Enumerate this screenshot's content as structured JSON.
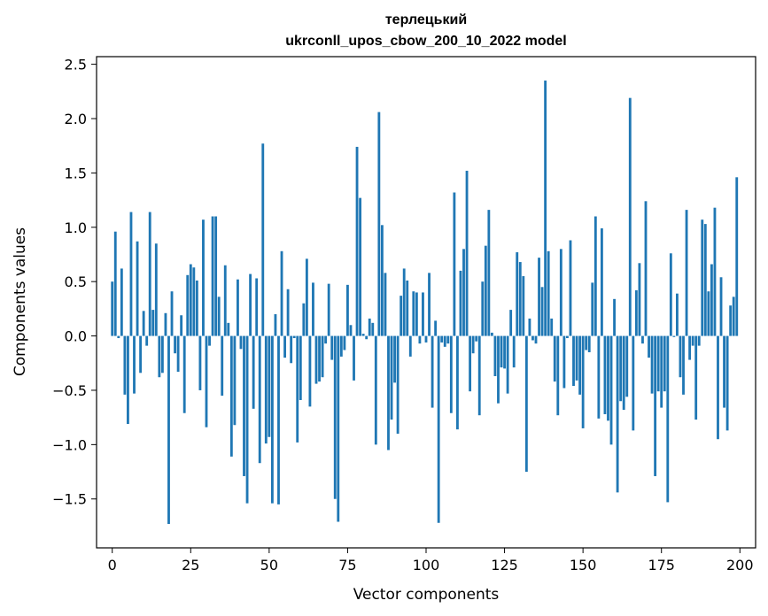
{
  "chart_data": {
    "type": "bar",
    "title_line1": "терлецький",
    "title_line2": "ukrconll_upos_cbow_200_10_2022 model",
    "xlabel": "Vector components",
    "ylabel": "Components values",
    "xlim": [
      -5,
      205
    ],
    "ylim": [
      -1.95,
      2.57
    ],
    "xticks": [
      0,
      25,
      50,
      75,
      100,
      125,
      150,
      175,
      200
    ],
    "yticks": [
      -1.5,
      -1.0,
      -0.5,
      0.0,
      0.5,
      1.0,
      1.5,
      2.0,
      2.5
    ],
    "bar_color": "#1f77b4",
    "grid": false,
    "x": [
      0,
      1,
      2,
      3,
      4,
      5,
      6,
      7,
      8,
      9,
      10,
      11,
      12,
      13,
      14,
      15,
      16,
      17,
      18,
      19,
      20,
      21,
      22,
      23,
      24,
      25,
      26,
      27,
      28,
      29,
      30,
      31,
      32,
      33,
      34,
      35,
      36,
      37,
      38,
      39,
      40,
      41,
      42,
      43,
      44,
      45,
      46,
      47,
      48,
      49,
      50,
      51,
      52,
      53,
      54,
      55,
      56,
      57,
      58,
      59,
      60,
      61,
      62,
      63,
      64,
      65,
      66,
      67,
      68,
      69,
      70,
      71,
      72,
      73,
      74,
      75,
      76,
      77,
      78,
      79,
      80,
      81,
      82,
      83,
      84,
      85,
      86,
      87,
      88,
      89,
      90,
      91,
      92,
      93,
      94,
      95,
      96,
      97,
      98,
      99,
      100,
      101,
      102,
      103,
      104,
      105,
      106,
      107,
      108,
      109,
      110,
      111,
      112,
      113,
      114,
      115,
      116,
      117,
      118,
      119,
      120,
      121,
      122,
      123,
      124,
      125,
      126,
      127,
      128,
      129,
      130,
      131,
      132,
      133,
      134,
      135,
      136,
      137,
      138,
      139,
      140,
      141,
      142,
      143,
      144,
      145,
      146,
      147,
      148,
      149,
      150,
      151,
      152,
      153,
      154,
      155,
      156,
      157,
      158,
      159,
      160,
      161,
      162,
      163,
      164,
      165,
      166,
      167,
      168,
      169,
      170,
      171,
      172,
      173,
      174,
      175,
      176,
      177,
      178,
      179,
      180,
      181,
      182,
      183,
      184,
      185,
      186,
      187,
      188,
      189,
      190,
      191,
      192,
      193,
      194,
      195,
      196,
      197,
      198,
      199
    ],
    "values": [
      0.5,
      0.96,
      -0.02,
      0.62,
      -0.54,
      -0.81,
      1.14,
      -0.53,
      0.87,
      -0.34,
      0.23,
      -0.09,
      1.14,
      0.24,
      0.85,
      -0.38,
      -0.34,
      0.21,
      -1.73,
      0.41,
      -0.16,
      -0.33,
      0.19,
      -0.71,
      0.56,
      0.66,
      0.63,
      0.51,
      -0.5,
      1.07,
      -0.84,
      -0.09,
      1.1,
      1.1,
      0.36,
      -0.55,
      0.65,
      0.12,
      -1.11,
      -0.82,
      0.52,
      -0.12,
      -1.29,
      -1.54,
      0.57,
      -0.67,
      0.53,
      -1.17,
      1.77,
      -0.99,
      -0.93,
      -1.54,
      0.2,
      -1.55,
      0.78,
      -0.2,
      0.43,
      -0.25,
      -0.02,
      -0.98,
      -0.59,
      0.3,
      0.71,
      -0.65,
      0.49,
      -0.44,
      -0.42,
      -0.38,
      -0.07,
      0.48,
      -0.22,
      -1.5,
      -1.71,
      -0.19,
      -0.13,
      0.47,
      0.1,
      -0.41,
      1.74,
      1.27,
      0.02,
      -0.03,
      0.16,
      0.12,
      -1.0,
      2.06,
      1.02,
      0.58,
      -1.05,
      -0.77,
      -0.43,
      -0.9,
      0.37,
      0.62,
      0.51,
      -0.19,
      0.41,
      0.4,
      -0.07,
      0.4,
      -0.06,
      0.58,
      -0.66,
      0.14,
      -1.72,
      -0.06,
      -0.1,
      -0.07,
      -0.71,
      1.32,
      -0.86,
      0.6,
      0.8,
      1.52,
      -0.51,
      -0.16,
      -0.05,
      -0.73,
      0.5,
      0.83,
      1.16,
      0.03,
      -0.37,
      -0.62,
      -0.29,
      -0.3,
      -0.53,
      0.24,
      -0.29,
      0.77,
      0.68,
      0.55,
      -1.25,
      0.16,
      -0.04,
      -0.07,
      0.72,
      0.45,
      2.35,
      0.78,
      0.16,
      -0.42,
      -0.73,
      0.8,
      -0.48,
      -0.02,
      0.88,
      -0.46,
      -0.41,
      -0.54,
      -0.85,
      -0.13,
      -0.15,
      0.49,
      1.1,
      -0.76,
      0.99,
      -0.72,
      -0.78,
      -1.0,
      0.34,
      -1.44,
      -0.6,
      -0.68,
      -0.56,
      2.19,
      -0.87,
      0.42,
      0.67,
      -0.07,
      1.24,
      -0.2,
      -0.53,
      -1.29,
      -0.51,
      -0.66,
      -0.51,
      -1.53,
      0.76,
      -0.01,
      0.39,
      -0.38,
      -0.54,
      1.16,
      -0.22,
      -0.09,
      -0.77,
      -0.09,
      1.07,
      1.03,
      0.41,
      0.66,
      1.18,
      -0.95,
      0.54,
      -0.66,
      -0.87,
      0.28,
      0.36,
      1.46
    ]
  }
}
